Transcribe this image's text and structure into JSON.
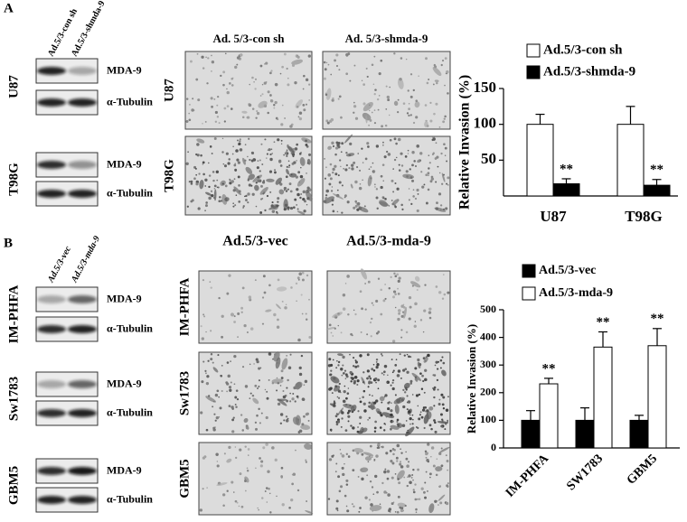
{
  "panel_A": {
    "label": "A",
    "blots": {
      "columns": [
        "Ad.5/3-con sh",
        "Ad.5/3-shmda-9"
      ],
      "rows": [
        {
          "name": "U87",
          "bands": [
            "MDA-9",
            "α-Tubulin"
          ]
        },
        {
          "name": "T98G",
          "bands": [
            "MDA-9",
            "α-Tubulin"
          ]
        }
      ]
    },
    "micrographs": {
      "columns": [
        "Ad. 5/3-con sh",
        "Ad. 5/3-shmda-9"
      ],
      "rows": [
        "U87",
        "T98G"
      ]
    }
  },
  "panel_B": {
    "label": "B",
    "blots": {
      "columns": [
        "Ad.5/3-vec",
        "Ad.5/3-mda-9"
      ],
      "rows": [
        {
          "name": "IM-PHFA",
          "bands": [
            "MDA-9",
            "α-Tubulin"
          ]
        },
        {
          "name": "Sw1783",
          "bands": [
            "MDA-9",
            "α-Tubulin"
          ]
        },
        {
          "name": "GBM5",
          "bands": [
            "MDA-9",
            "α-Tubulin"
          ]
        }
      ]
    },
    "micrographs": {
      "columns": [
        "Ad.5/3-vec",
        "Ad.5/3-mda-9"
      ],
      "rows": [
        "IM-PHFA",
        "Sw1783",
        "GBM5"
      ]
    }
  },
  "chart_data": [
    {
      "type": "bar",
      "y_label": "Relative Invasion (%)",
      "categories": [
        "U87",
        "T98G"
      ],
      "series": [
        {
          "name": "Ad.5/3-con sh",
          "color": "#ffffff",
          "values": [
            100,
            100
          ],
          "errors": [
            14,
            25
          ]
        },
        {
          "name": "Ad.5/3-shmda-9",
          "color": "#000000",
          "values": [
            17,
            15
          ],
          "errors": [
            7,
            8
          ],
          "annotations": [
            "**",
            "**"
          ]
        }
      ],
      "ylim": [
        0,
        150
      ],
      "yticks": [
        50,
        100,
        150
      ],
      "legend": "top"
    },
    {
      "type": "bar",
      "y_label": "Relative Invasion (%)",
      "categories": [
        "IM-PHFA",
        "SW1783",
        "GBM5"
      ],
      "series": [
        {
          "name": "Ad.5/3-vec",
          "color": "#000000",
          "values": [
            100,
            100,
            100
          ],
          "errors": [
            35,
            45,
            18
          ]
        },
        {
          "name": "Ad.5/3-mda-9",
          "color": "#ffffff",
          "values": [
            232,
            365,
            370
          ],
          "errors": [
            20,
            55,
            62
          ],
          "annotations": [
            "**",
            "**",
            "**"
          ]
        }
      ],
      "ylim": [
        0,
        500
      ],
      "yticks": [
        0,
        100,
        200,
        300,
        400,
        500
      ],
      "legend": "top"
    }
  ]
}
